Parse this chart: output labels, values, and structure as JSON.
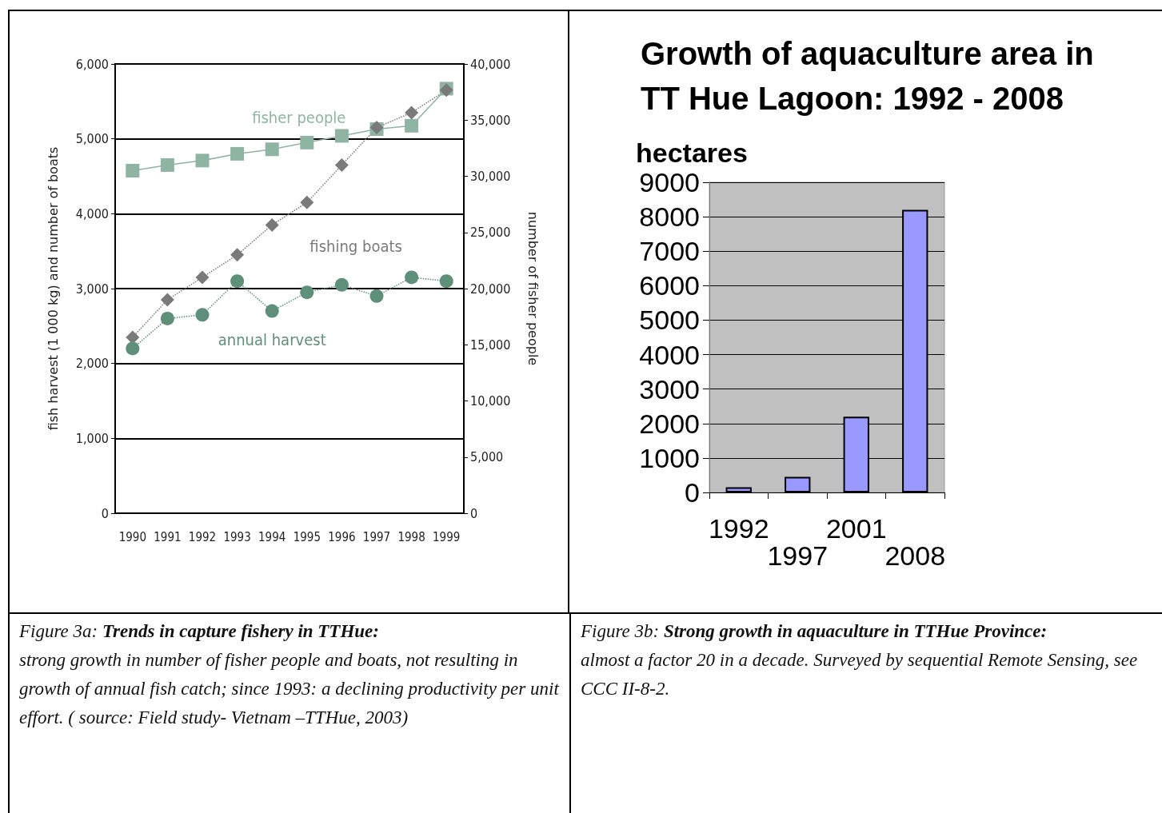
{
  "chart_data": [
    {
      "type": "line",
      "ylabel": "fish harvest (1 000 kg) and number of boats",
      "y2label": "number of fisher people",
      "categories": [
        "1990",
        "1991",
        "1992",
        "1993",
        "1994",
        "1995",
        "1996",
        "1997",
        "1998",
        "1999"
      ],
      "series": [
        {
          "name": "fisher people",
          "color": "#8fb5a2",
          "axis": "y2",
          "marker": "square",
          "line_style": "solid",
          "values": [
            30500,
            31000,
            31400,
            32000,
            32400,
            33000,
            33600,
            34200,
            34500,
            37800
          ]
        },
        {
          "name": "fishing boats",
          "color": "#7a7a7a",
          "marker": "diamond",
          "line_style": "dotted",
          "values": [
            2350,
            2850,
            3150,
            3450,
            3850,
            4150,
            4650,
            5150,
            5350,
            5650
          ]
        },
        {
          "name": "annual harvest",
          "color": "#5e8f78",
          "marker": "circle",
          "line_style": "dotted",
          "values": [
            2200,
            2600,
            2650,
            3100,
            2700,
            2950,
            3050,
            2900,
            3150,
            3100
          ]
        }
      ],
      "ylim": [
        0,
        6000
      ],
      "yticks": [
        {
          "value": 0,
          "label": "0"
        },
        {
          "value": 1000,
          "label": "1,000"
        },
        {
          "value": 2000,
          "label": "2,000"
        },
        {
          "value": 3000,
          "label": "3,000"
        },
        {
          "value": 4000,
          "label": "4,000"
        },
        {
          "value": 5000,
          "label": "5,000"
        },
        {
          "value": 6000,
          "label": "6,000"
        }
      ],
      "y2lim": [
        0,
        40000
      ],
      "y2ticks": [
        {
          "value": 0,
          "label": "0"
        },
        {
          "value": 5000,
          "label": "5,000"
        },
        {
          "value": 10000,
          "label": "10,000"
        },
        {
          "value": 15000,
          "label": "15,000"
        },
        {
          "value": 20000,
          "label": "20,000"
        },
        {
          "value": 25000,
          "label": "25,000"
        },
        {
          "value": 30000,
          "label": "30,000"
        },
        {
          "value": 35000,
          "label": "35,000"
        },
        {
          "value": 40000,
          "label": "40,000"
        }
      ],
      "grid": "y",
      "annotations": [
        "Figure 3a:",
        "Trends in capture fishery in TTHue:",
        "strong growth in number of fisher people and boats, not resulting in growth of annual fish catch; since 1993:  a declining productivity per unit effort. ( source:  Field study- Vietnam –TTHue, 2003)"
      ]
    },
    {
      "type": "bar",
      "title": "Growth of aquaculture area in TT Hue Lagoon: 1992 - 2008",
      "ylabel": "hectares",
      "categories": [
        "1992",
        "1997",
        "2001",
        "2008"
      ],
      "values": [
        150,
        450,
        2200,
        8200
      ],
      "color": "#9999ff",
      "ylim": [
        0,
        9000
      ],
      "yticks": [
        0,
        1000,
        2000,
        3000,
        4000,
        5000,
        6000,
        7000,
        8000,
        9000
      ],
      "grid": "y",
      "annotations": [
        "Figure 3b:",
        "Strong growth in aquaculture in TTHue Province:",
        "almost a factor 20  in a decade. Surveyed by sequential Remote Sensing, see  CCC II-8-2."
      ]
    }
  ]
}
